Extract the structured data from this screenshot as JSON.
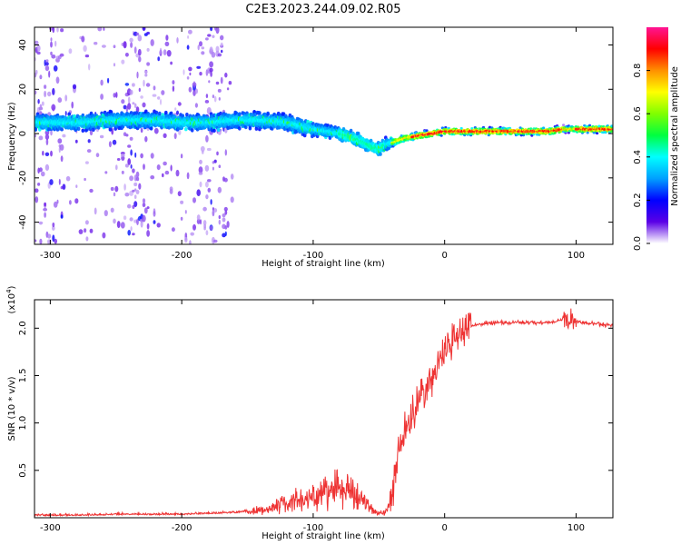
{
  "title": "C2E3.2023.244.09.02.R05",
  "chart_data": [
    {
      "type": "heatmap",
      "name": "spectrogram",
      "xlabel": "Height of straight line (km)",
      "ylabel": "Frequency (Hz)",
      "xlim": [
        -312,
        128
      ],
      "ylim": [
        -50,
        48
      ],
      "xticks": [
        -300,
        -200,
        -100,
        0,
        100
      ],
      "yticks": [
        -40,
        -20,
        0,
        20,
        40
      ],
      "colorbar": {
        "label": "Normalized spectral amplitude",
        "range": [
          0,
          1
        ],
        "ticks": [
          0.0,
          0.2,
          0.4,
          0.6,
          0.8
        ],
        "tick_labels": [
          "0.0",
          "0.2",
          "0.4",
          "0.6",
          "0.8"
        ],
        "colormap": [
          "#ffffff",
          "#5a00e6",
          "#0000ff",
          "#00a0ff",
          "#00ffff",
          "#00ff40",
          "#80ff00",
          "#ffff00",
          "#ff9000",
          "#ff0000",
          "#ff1493"
        ]
      },
      "ridge": {
        "description": "dominant frequency vs height",
        "x": [
          -312,
          -280,
          -250,
          -220,
          -200,
          -180,
          -160,
          -140,
          -120,
          -100,
          -80,
          -65,
          -55,
          -50,
          -45,
          -40,
          -35,
          -30,
          -20,
          -10,
          0,
          20,
          50,
          80,
          90,
          100,
          128
        ],
        "y": [
          5,
          5,
          6,
          6,
          5,
          5,
          6,
          6,
          5,
          2,
          0,
          -3,
          -6,
          -7,
          -5,
          -4,
          -3,
          -2,
          -1,
          0,
          1,
          1,
          1,
          1,
          2,
          2,
          2
        ]
      }
    },
    {
      "type": "line",
      "name": "snr",
      "xlabel": "Height of straight line (km)",
      "ylabel": "SNR (10 * v/v)",
      "scale_label": "(x10",
      "scale_exponent": "4",
      "scale_suffix": ")",
      "xlim": [
        -312,
        128
      ],
      "ylim": [
        0,
        2.3
      ],
      "xticks": [
        -300,
        -200,
        -100,
        0,
        100
      ],
      "yticks": [
        0.5,
        1.0,
        1.5,
        2.0
      ],
      "ytick_labels": [
        "0.5",
        "1.0",
        "1.5",
        "2.0"
      ],
      "color": "#ee3333",
      "x": [
        -312,
        -280,
        -250,
        -220,
        -200,
        -180,
        -160,
        -140,
        -120,
        -100,
        -90,
        -80,
        -70,
        -60,
        -50,
        -45,
        -40,
        -35,
        -30,
        -25,
        -20,
        -15,
        -10,
        -5,
        0,
        10,
        20,
        30,
        40,
        60,
        80,
        85,
        90,
        95,
        100,
        110,
        128
      ],
      "y": [
        0.02,
        0.02,
        0.03,
        0.03,
        0.03,
        0.04,
        0.05,
        0.08,
        0.15,
        0.22,
        0.28,
        0.35,
        0.28,
        0.15,
        0.04,
        0.06,
        0.25,
        0.65,
        0.95,
        1.05,
        1.25,
        1.35,
        1.5,
        1.6,
        1.75,
        1.95,
        2.02,
        2.05,
        2.06,
        2.06,
        2.06,
        2.07,
        2.1,
        2.08,
        2.07,
        2.05,
        2.03
      ]
    }
  ]
}
